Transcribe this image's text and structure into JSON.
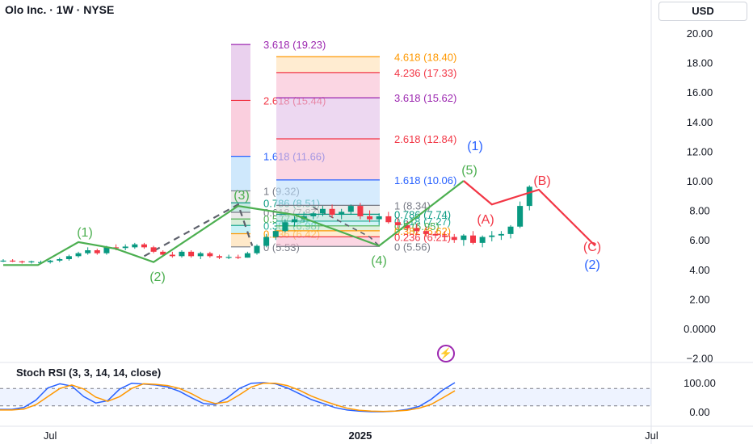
{
  "header": {
    "title": "Olo Inc. · 1W · NYSE",
    "currency": "USD"
  },
  "chart_data": [
    {
      "type": "candlestick",
      "symbol": "Olo Inc.",
      "interval": "1W",
      "exchange": "NYSE",
      "ylim": [
        -2.5,
        21
      ],
      "y_ticks": [
        "20.00",
        "18.00",
        "16.00",
        "14.00",
        "12.00",
        "10.00",
        "8.00",
        "6.00",
        "4.00",
        "2.00",
        "0.0000",
        "−2.00"
      ],
      "y_tick_values": [
        20,
        18,
        16,
        14,
        12,
        10,
        8,
        6,
        4,
        2,
        0,
        -2
      ],
      "x_ticks": [
        {
          "label": "Jul",
          "index": 5
        },
        {
          "label": "2025",
          "index": 38
        },
        {
          "label": "Jul",
          "index": 69
        }
      ],
      "candles": [
        [
          4.6,
          4.7,
          4.5,
          4.6
        ],
        [
          4.6,
          4.7,
          4.5,
          4.55
        ],
        [
          4.55,
          4.6,
          4.4,
          4.5
        ],
        [
          4.5,
          4.6,
          4.4,
          4.55
        ],
        [
          4.5,
          4.6,
          4.4,
          4.5
        ],
        [
          4.5,
          4.65,
          4.4,
          4.6
        ],
        [
          4.6,
          4.8,
          4.5,
          4.7
        ],
        [
          4.7,
          5.0,
          4.6,
          4.9
        ],
        [
          4.9,
          5.2,
          4.8,
          5.1
        ],
        [
          5.1,
          5.5,
          5.0,
          5.3
        ],
        [
          5.3,
          5.4,
          5.0,
          5.1
        ],
        [
          5.1,
          5.6,
          5.0,
          5.5
        ],
        [
          5.5,
          5.7,
          5.3,
          5.45
        ],
        [
          5.45,
          5.7,
          5.3,
          5.55
        ],
        [
          5.5,
          5.8,
          5.4,
          5.7
        ],
        [
          5.7,
          5.8,
          5.4,
          5.5
        ],
        [
          5.5,
          5.6,
          5.1,
          5.2
        ],
        [
          5.2,
          5.3,
          4.9,
          5.0
        ],
        [
          5.0,
          5.2,
          4.8,
          4.9
        ],
        [
          4.9,
          5.3,
          4.8,
          5.2
        ],
        [
          5.2,
          5.3,
          4.8,
          4.9
        ],
        [
          4.9,
          5.2,
          4.7,
          5.1
        ],
        [
          5.1,
          5.2,
          4.8,
          4.9
        ],
        [
          4.9,
          5.0,
          4.7,
          4.8
        ],
        [
          4.8,
          5.0,
          4.7,
          4.85
        ],
        [
          4.85,
          5.0,
          4.7,
          4.8
        ],
        [
          4.8,
          5.2,
          4.8,
          5.1
        ],
        [
          5.1,
          5.7,
          5.0,
          5.6
        ],
        [
          5.6,
          6.4,
          5.5,
          6.2
        ],
        [
          6.2,
          6.8,
          6.0,
          6.6
        ],
        [
          6.6,
          7.4,
          6.5,
          7.2
        ],
        [
          7.2,
          7.6,
          6.9,
          7.4
        ],
        [
          7.4,
          7.9,
          7.2,
          7.6
        ],
        [
          7.6,
          7.9,
          7.4,
          7.8
        ],
        [
          7.8,
          8.3,
          7.6,
          8.1
        ],
        [
          8.1,
          8.4,
          7.5,
          7.7
        ],
        [
          7.7,
          8.1,
          7.4,
          7.9
        ],
        [
          7.9,
          8.4,
          7.7,
          8.3
        ],
        [
          8.3,
          8.5,
          7.4,
          7.6
        ],
        [
          7.6,
          8.0,
          7.2,
          7.4
        ],
        [
          7.4,
          7.8,
          7.0,
          7.6
        ],
        [
          7.6,
          7.9,
          7.1,
          7.2
        ],
        [
          7.2,
          7.5,
          6.8,
          7.0
        ],
        [
          7.0,
          7.3,
          6.6,
          6.8
        ],
        [
          6.8,
          7.1,
          6.4,
          6.6
        ],
        [
          6.6,
          6.9,
          6.2,
          6.4
        ],
        [
          6.4,
          6.6,
          6.1,
          6.3
        ],
        [
          6.3,
          6.6,
          6.0,
          6.2
        ],
        [
          6.2,
          6.4,
          5.8,
          6.0
        ],
        [
          6.0,
          6.4,
          5.6,
          6.3
        ],
        [
          6.3,
          6.6,
          5.7,
          5.8
        ],
        [
          5.8,
          6.3,
          5.5,
          6.2
        ],
        [
          6.2,
          6.6,
          5.9,
          6.3
        ],
        [
          6.3,
          6.6,
          6.0,
          6.4
        ],
        [
          6.4,
          7.0,
          6.1,
          6.9
        ],
        [
          6.9,
          8.6,
          6.8,
          8.3
        ],
        [
          8.3,
          9.7,
          8.0,
          9.6
        ]
      ]
    },
    {
      "type": "line",
      "title": "Stoch RSI (3, 3, 14, 14, close)",
      "ylim": [
        -10,
        125
      ],
      "y_ticks": [
        "100.00",
        "0.00"
      ],
      "y_tick_values": [
        100,
        0
      ],
      "series": [
        {
          "color": "#2962ff",
          "values": [
            8,
            8,
            15,
            40,
            82,
            96,
            88,
            52,
            30,
            38,
            78,
            98,
            95,
            92,
            85,
            70,
            48,
            28,
            25,
            48,
            80,
            98,
            100,
            96,
            82,
            62,
            42,
            28,
            14,
            6,
            2,
            0,
            0,
            2,
            8,
            18,
            42,
            75,
            100
          ]
        },
        {
          "color": "#ff9800",
          "values": [
            6,
            6,
            9,
            24,
            52,
            80,
            92,
            78,
            50,
            36,
            52,
            80,
            96,
            94,
            90,
            80,
            62,
            40,
            28,
            34,
            58,
            85,
            98,
            98,
            90,
            74,
            54,
            38,
            24,
            12,
            5,
            2,
            1,
            2,
            5,
            12,
            25,
            48,
            72
          ]
        }
      ]
    }
  ],
  "fib_left": {
    "levels": [
      "3.618 (19.23)",
      "2.618 (15.44)",
      "1.618 (11.66)",
      "1 (9.32)",
      "0.786 (8.51)",
      "0.618 (7.87)",
      "0.5 (7.42)",
      "0.382 (6.98)",
      "0.236 (6.42)",
      "0 (5.53)"
    ],
    "values": [
      19.23,
      15.44,
      11.66,
      9.32,
      8.51,
      7.87,
      7.42,
      6.98,
      6.42,
      5.53
    ],
    "colors": [
      "#9c27b0",
      "#f23645",
      "#2962ff",
      "#787b86",
      "#089981",
      "#787b86",
      "#4caf50",
      "#22ab94",
      "#ff9800",
      "#787b86"
    ]
  },
  "fib_right": {
    "levels": [
      "4.618 (18.40)",
      "4.236 (17.33)",
      "3.618 (15.62)",
      "2.618 (12.84)",
      "1.618 (10.06)",
      "1 (8.34)",
      "0.786 (7.74)",
      "0.618 (7.27)",
      "0.5 (6.95)",
      "0.382 (6.62)",
      "0.236 (6.21)",
      "0 (5.56)"
    ],
    "values": [
      18.4,
      17.33,
      15.62,
      12.84,
      10.06,
      8.34,
      7.74,
      7.27,
      6.95,
      6.62,
      6.21,
      5.56
    ],
    "colors": [
      "#ff9800",
      "#f23645",
      "#9c27b0",
      "#f23645",
      "#2962ff",
      "#787b86",
      "#089981",
      "#22ab94",
      "#4caf50",
      "#ff9800",
      "#f23645",
      "#787b86"
    ]
  },
  "waves": [
    {
      "label": "(1)",
      "color": "#4caf50"
    },
    {
      "label": "(2)",
      "color": "#4caf50"
    },
    {
      "label": "(3)",
      "color": "#4caf50"
    },
    {
      "label": "(4)",
      "color": "#4caf50"
    },
    {
      "label": "(5)",
      "color": "#4caf50"
    },
    {
      "label": "(A)",
      "color": "#f23645"
    },
    {
      "label": "(B)",
      "color": "#f23645"
    },
    {
      "label": "(C)",
      "color": "#f23645"
    },
    {
      "label": "(1)",
      "color": "#2962ff"
    },
    {
      "label": "(2)",
      "color": "#2962ff"
    }
  ],
  "colors": {
    "up": "#089981",
    "down": "#f23645",
    "wave_green": "#4caf50",
    "wave_red": "#f23645",
    "fib_gray": "#787b86"
  }
}
